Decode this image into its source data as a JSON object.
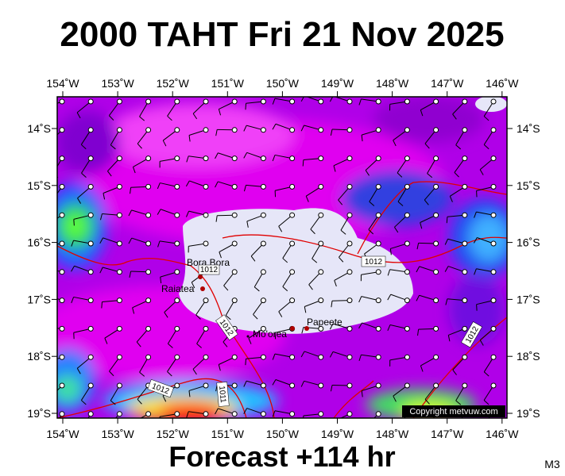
{
  "title": "2000 TAHT Fri 21 Nov 2025",
  "footer": "Forecast +114 hr",
  "model": "M3",
  "copyright": "Copyright metvuw.com",
  "longitudes": [
    "154˚W",
    "153˚W",
    "152˚W",
    "151˚W",
    "150˚W",
    "149˚W",
    "148˚W",
    "147˚W",
    "146˚W"
  ],
  "latitudes": [
    "14˚S",
    "15˚S",
    "16˚S",
    "17˚S",
    "18˚S",
    "19˚S"
  ],
  "places": [
    "Bora Bora",
    "Raiatea",
    "Mo'orea",
    "Papeete"
  ],
  "isobar_labels": [
    "1012",
    "1012",
    "1012",
    "1011",
    "1012",
    "1012"
  ]
}
